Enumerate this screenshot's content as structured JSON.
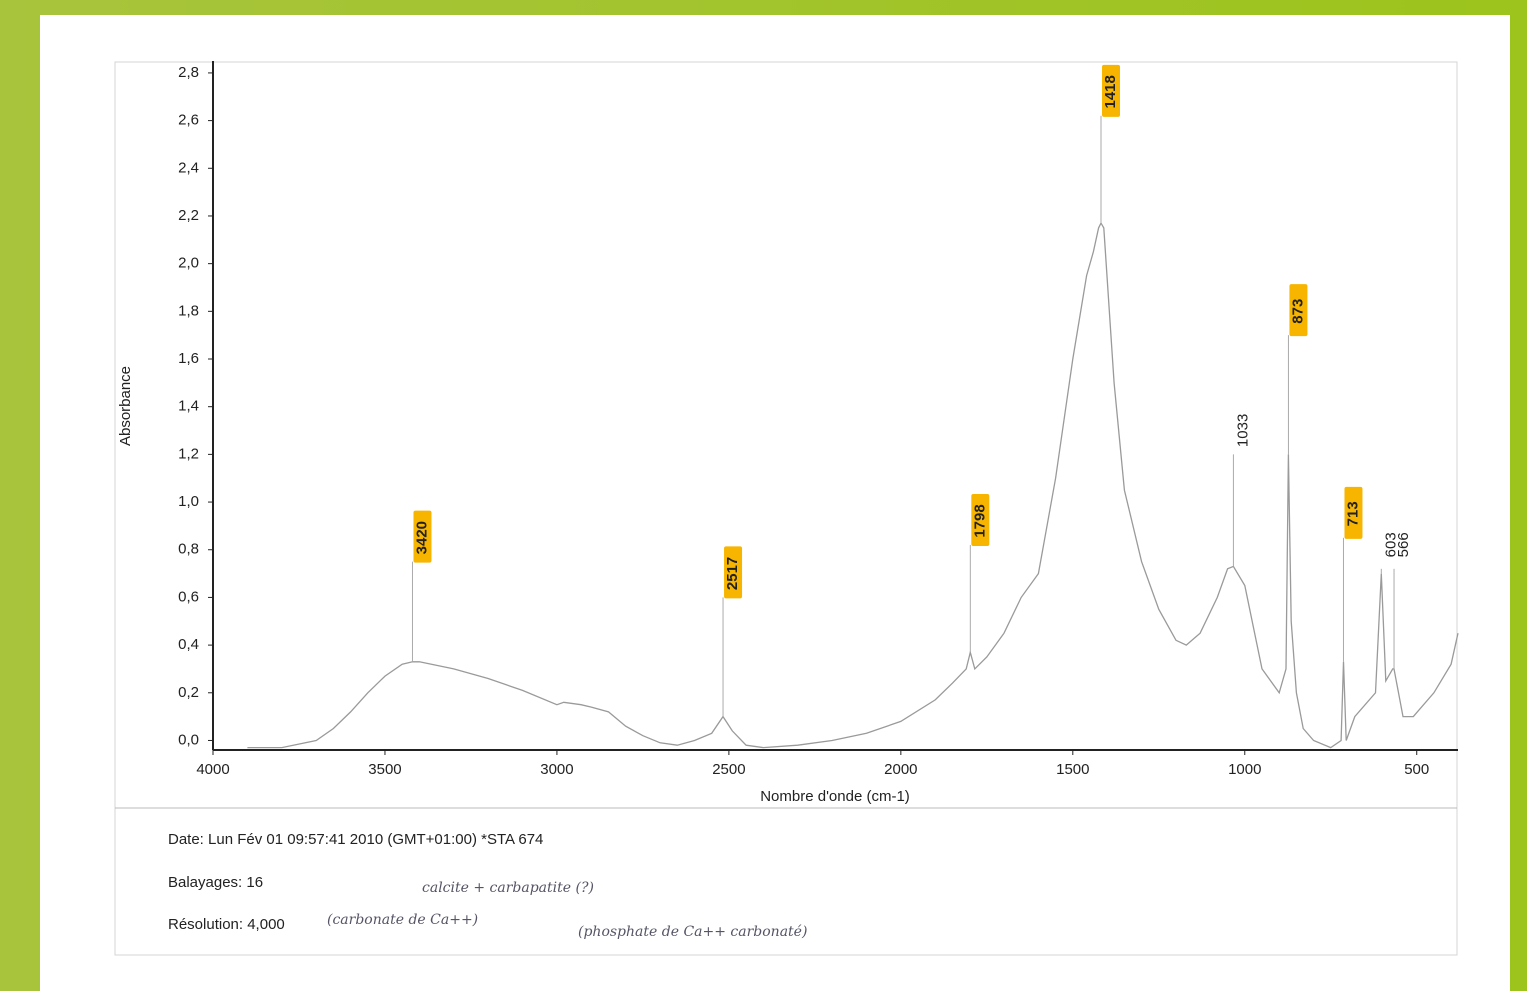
{
  "chart_data": {
    "type": "line",
    "xlabel": "Nombre d'onde (cm-1)",
    "ylabel": "Absorbance",
    "x": [
      3900,
      3800,
      3700,
      3650,
      3600,
      3550,
      3500,
      3450,
      3420,
      3400,
      3300,
      3200,
      3100,
      3000,
      2980,
      2930,
      2900,
      2850,
      2800,
      2750,
      2700,
      2650,
      2600,
      2550,
      2517,
      2490,
      2450,
      2400,
      2300,
      2200,
      2100,
      2000,
      1900,
      1850,
      1810,
      1798,
      1785,
      1750,
      1700,
      1650,
      1600,
      1550,
      1500,
      1460,
      1440,
      1425,
      1418,
      1410,
      1380,
      1350,
      1300,
      1250,
      1200,
      1170,
      1130,
      1080,
      1050,
      1033,
      1000,
      950,
      900,
      880,
      873,
      865,
      850,
      830,
      800,
      750,
      720,
      713,
      705,
      680,
      620,
      603,
      590,
      570,
      566,
      540,
      510,
      450,
      400,
      380
    ],
    "values": [
      -0.03,
      -0.03,
      0.0,
      0.05,
      0.12,
      0.2,
      0.27,
      0.32,
      0.33,
      0.33,
      0.3,
      0.26,
      0.21,
      0.15,
      0.16,
      0.15,
      0.14,
      0.12,
      0.06,
      0.02,
      -0.01,
      -0.02,
      0.0,
      0.03,
      0.1,
      0.04,
      -0.02,
      -0.03,
      -0.02,
      0.0,
      0.03,
      0.08,
      0.17,
      0.24,
      0.3,
      0.37,
      0.3,
      0.35,
      0.45,
      0.6,
      0.7,
      1.1,
      1.6,
      1.95,
      2.05,
      2.15,
      2.17,
      2.15,
      1.5,
      1.05,
      0.75,
      0.55,
      0.42,
      0.4,
      0.45,
      0.6,
      0.72,
      0.73,
      0.65,
      0.3,
      0.2,
      0.3,
      1.2,
      0.5,
      0.2,
      0.05,
      0.0,
      -0.03,
      0.0,
      0.33,
      0.0,
      0.1,
      0.2,
      0.7,
      0.25,
      0.3,
      0.3,
      0.1,
      0.1,
      0.2,
      0.32,
      0.45
    ],
    "color": "#9a9a9a",
    "xlim": [
      4000,
      380
    ],
    "ylim": [
      -0.04,
      2.85
    ],
    "xticks": [
      4000,
      3500,
      3000,
      2500,
      2000,
      1500,
      1000,
      500
    ],
    "yticks": [
      {
        "value": 0.0,
        "label": "0,0"
      },
      {
        "value": 0.2,
        "label": "0,2"
      },
      {
        "value": 0.4,
        "label": "0,4"
      },
      {
        "value": 0.6,
        "label": "0,6"
      },
      {
        "value": 0.8,
        "label": "0,8"
      },
      {
        "value": 1.0,
        "label": "1,0"
      },
      {
        "value": 1.2,
        "label": "1,2"
      },
      {
        "value": 1.4,
        "label": "1,4"
      },
      {
        "value": 1.6,
        "label": "1,6"
      },
      {
        "value": 1.8,
        "label": "1,8"
      },
      {
        "value": 2.0,
        "label": "2,0"
      },
      {
        "value": 2.2,
        "label": "2,2"
      },
      {
        "value": 2.4,
        "label": "2,4"
      },
      {
        "value": 2.6,
        "label": "2,6"
      },
      {
        "value": 2.8,
        "label": "2,8"
      }
    ],
    "grid": false,
    "highlight_color": "#f7b500",
    "annotations": [
      {
        "x": 3420,
        "y": 0.75,
        "highlight": true
      },
      {
        "x": 2517,
        "y": 0.6,
        "highlight": true
      },
      {
        "x": 1798,
        "y": 0.82,
        "highlight": true
      },
      {
        "x": 1418,
        "y": 2.62,
        "highlight": true
      },
      {
        "x": 1033,
        "y": 1.2,
        "highlight": false
      },
      {
        "x": 873,
        "y": 1.7,
        "highlight": true
      },
      {
        "x": 713,
        "y": 0.85,
        "highlight": true
      },
      {
        "x": 603,
        "y": 0.72,
        "highlight": false
      },
      {
        "x": 566,
        "y": 0.72,
        "highlight": false
      }
    ]
  },
  "footer": {
    "date": "Date: Lun Fév 01 09:57:41 2010 (GMT+01:00)   *STA 674",
    "scans": "Balayages: 16",
    "resolution": "Résolution:  4,000",
    "handwriting": [
      "calcite + carbapatite (?)",
      "(carbonate de Ca++)",
      "(phosphate de Ca++ carbonaté)"
    ]
  }
}
